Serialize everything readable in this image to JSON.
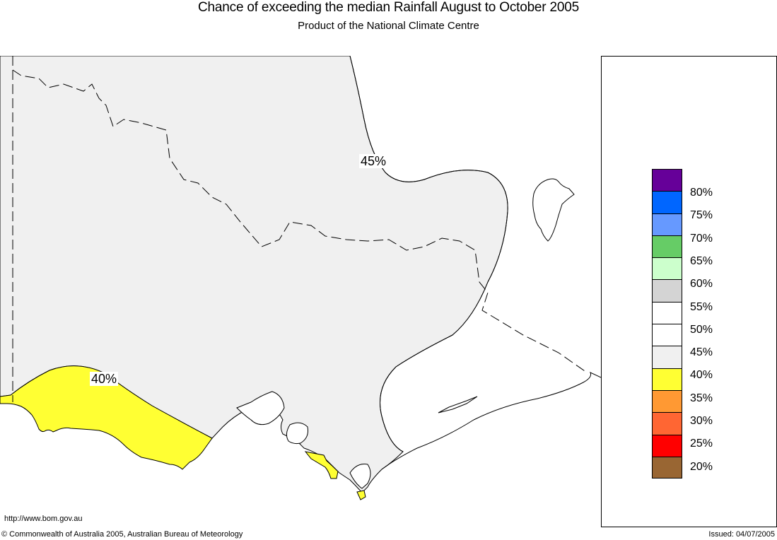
{
  "title": "Chance of exceeding the median Rainfall August to October 2005",
  "subtitle": "Product of the National Climate Centre",
  "map": {
    "contour_labels": {
      "upper": "45%",
      "lower": "40%"
    },
    "colors": {
      "land_45": "#f0f0f0",
      "land_50": "#ffffff",
      "land_40": "#ffff33",
      "outline": "#000000"
    }
  },
  "legend": {
    "swatches": [
      {
        "level": "above 80%",
        "color": "#660099"
      },
      {
        "level": "75-80%",
        "color": "#0066ff"
      },
      {
        "level": "70-75%",
        "color": "#6699ff"
      },
      {
        "level": "65-70%",
        "color": "#66cc66"
      },
      {
        "level": "60-65%",
        "color": "#ccffcc"
      },
      {
        "level": "55-60%",
        "color": "#d4d4d4"
      },
      {
        "level": "50-55%",
        "color": "#ffffff"
      },
      {
        "level": "45-50%",
        "color": "#ffffff"
      },
      {
        "level": "40-45%",
        "color": "#f0f0f0"
      },
      {
        "level": "35-40%",
        "color": "#ffff33"
      },
      {
        "level": "30-35%",
        "color": "#ff9933"
      },
      {
        "level": "25-30%",
        "color": "#ff6633"
      },
      {
        "level": "20-25%",
        "color": "#ff0000"
      },
      {
        "level": "below 20%",
        "color": "#996633"
      }
    ],
    "labels": [
      "80%",
      "75%",
      "70%",
      "65%",
      "60%",
      "55%",
      "50%",
      "45%",
      "40%",
      "35%",
      "30%",
      "25%",
      "20%"
    ]
  },
  "url_text": "http://www.bom.gov.au",
  "footer": {
    "copyright": "© Commonwealth of Australia 2005, Australian Bureau of Meteorology",
    "issued": "Issued: 04/07/2005"
  }
}
